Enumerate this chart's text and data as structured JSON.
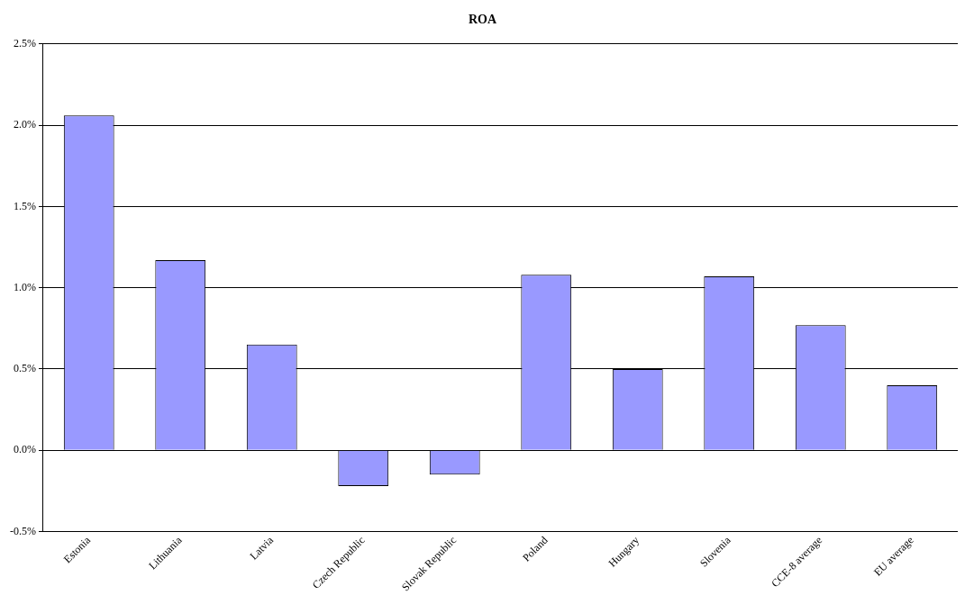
{
  "chart_data": {
    "type": "bar",
    "title": "ROA",
    "categories": [
      "Estonia",
      "Lithuania",
      "Latvia",
      "Czech Republic",
      "Slovak Republic",
      "Poland",
      "Hungary",
      "Slovenia",
      "CCE-8 average",
      "EU average"
    ],
    "values": [
      2.06,
      1.17,
      0.65,
      -0.22,
      -0.15,
      1.08,
      0.5,
      1.07,
      0.77,
      0.4
    ],
    "color": "#9999ff",
    "ylim": [
      -0.5,
      2.5
    ],
    "yticks": [
      {
        "value": -0.5,
        "label": "-0.5%"
      },
      {
        "value": 0,
        "label": "0.0%"
      },
      {
        "value": 0.5,
        "label": "0.5%"
      },
      {
        "value": 1,
        "label": "1.0%"
      },
      {
        "value": 1.5,
        "label": "1.5%"
      },
      {
        "value": 2,
        "label": "2.0%"
      },
      {
        "value": 2.5,
        "label": "2.5%"
      }
    ],
    "grid": "y",
    "legend": false
  }
}
